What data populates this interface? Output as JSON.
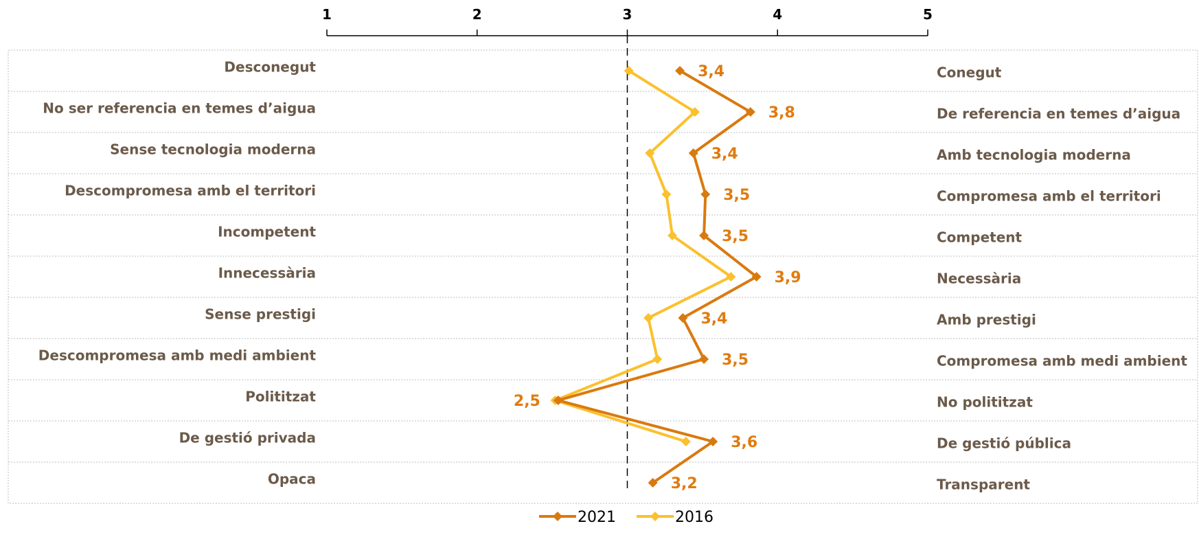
{
  "chart_data": {
    "type": "line",
    "orientation": "horizontal",
    "xlim": [
      1,
      5
    ],
    "x_ticks": [
      "1",
      "2",
      "3",
      "4",
      "5"
    ],
    "reference_line": 3,
    "left_labels": [
      "Desconegut",
      "No ser referencia en temes d’aigua",
      "Sense tecnologia moderna",
      "Descompromesa amb el territori",
      "Incompetent",
      "Innecessària",
      "Sense prestigi",
      "Descompromesa amb medi ambient",
      "Polititzat",
      "De gestió privada",
      "Opaca"
    ],
    "right_labels": [
      "Conegut",
      "De referencia en temes d’aigua",
      "Amb tecnologia moderna",
      "Compromesa amb el territori",
      "Competent",
      "Necessària",
      "Amb prestigi",
      "Compromesa amb medi ambient",
      "No polititzat",
      "De gestió pública",
      "Transparent"
    ],
    "series": [
      {
        "name": "2021",
        "color": "#d97a0f",
        "values": [
          3.35,
          3.82,
          3.44,
          3.52,
          3.51,
          3.86,
          3.37,
          3.51,
          2.54,
          3.57,
          3.17
        ],
        "labels": [
          "3,4",
          "3,8",
          "3,4",
          "3,5",
          "3,5",
          "3,9",
          "3,4",
          "3,5",
          "2,5",
          "3,6",
          "3,2"
        ]
      },
      {
        "name": "2016",
        "color": "#fbc02d",
        "values": [
          3.01,
          3.45,
          3.15,
          3.26,
          3.3,
          3.69,
          3.14,
          3.2,
          2.52,
          3.39,
          null
        ]
      }
    ],
    "legend_placement": "bottom-center",
    "label_color": "#e07b10"
  }
}
